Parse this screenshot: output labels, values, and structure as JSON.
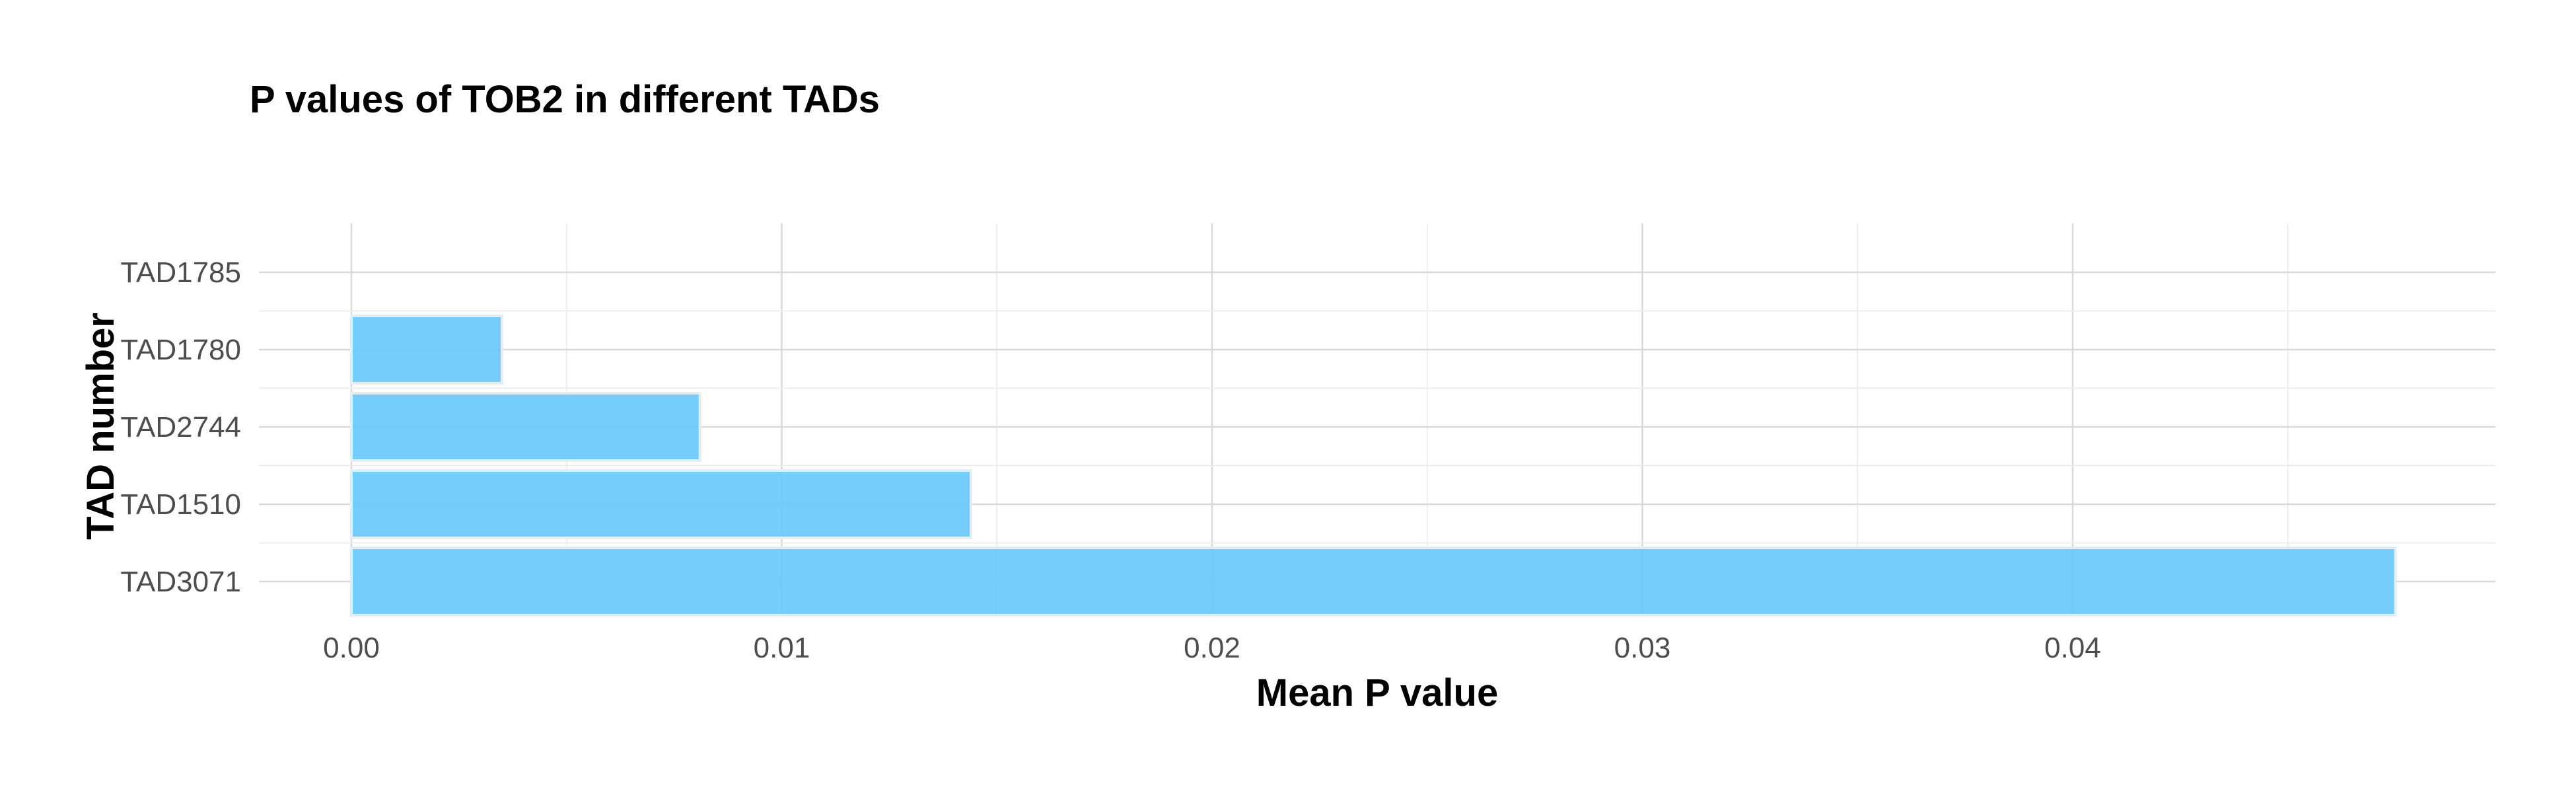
{
  "chart_data": {
    "type": "bar",
    "orientation": "horizontal",
    "title": "P values of TOB2 in different TADs",
    "xlabel": "Mean P value",
    "ylabel": "TAD number",
    "categories": [
      "TAD1785",
      "TAD1780",
      "TAD2744",
      "TAD1510",
      "TAD3071"
    ],
    "values": [
      null,
      0.0035,
      0.0081,
      0.0144,
      0.0475
    ],
    "xlim": [
      0,
      0.05
    ],
    "xticks": [
      0,
      0.01,
      0.02,
      0.03,
      0.04
    ],
    "xtick_labels": [
      "0.00",
      "0.01",
      "0.02",
      "0.03",
      "0.04"
    ],
    "bar_color": "#66c8fb",
    "grid": true,
    "legend": "none"
  }
}
